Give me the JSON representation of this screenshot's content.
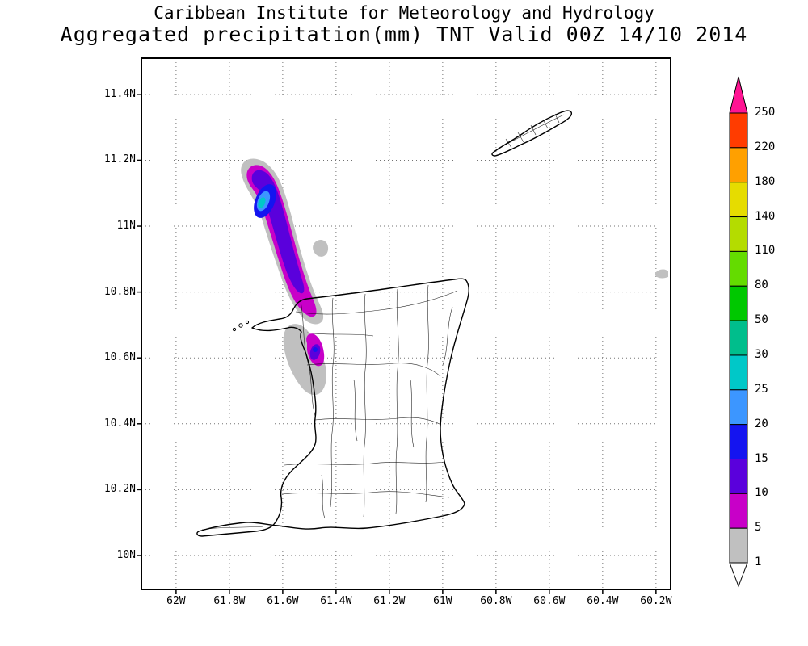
{
  "header": {
    "line1": "Caribbean Institute for Meteorology and Hydrology",
    "line2": "Aggregated precipitation(mm) TNT Valid 00Z 14/10 2014"
  },
  "axes": {
    "lat_ticks": {
      "labels": [
        "11.4N",
        "11.2N",
        "11N",
        "10.8N",
        "10.6N",
        "10.4N",
        "10.2N",
        "10N"
      ],
      "values": [
        11.4,
        11.2,
        11.0,
        10.8,
        10.6,
        10.4,
        10.2,
        10.0
      ]
    },
    "lon_ticks": {
      "labels": [
        "62W",
        "61.8W",
        "61.6W",
        "61.4W",
        "61.2W",
        "61W",
        "60.8W",
        "60.6W",
        "60.4W",
        "60.2W"
      ],
      "values": [
        -62.0,
        -61.8,
        -61.6,
        -61.4,
        -61.2,
        -61.0,
        -60.8,
        -60.6,
        -60.4,
        -60.2
      ]
    }
  },
  "colorbar": {
    "labels_top_to_bottom": [
      "250",
      "220",
      "180",
      "140",
      "110",
      "80",
      "50",
      "30",
      "25",
      "20",
      "15",
      "10",
      "5",
      "1"
    ]
  },
  "chart_data": {
    "type": "heatmap",
    "title": "Aggregated precipitation(mm) TNT Valid 00Z 14/10 2014",
    "subtitle": "Caribbean Institute for Meteorology and Hydrology",
    "region": "Trinidad and Tobago (TNT)",
    "valid_time": "00Z 14/10 2014",
    "units": "mm",
    "lon_range": [
      -62.13,
      -60.145
    ],
    "lat_range": [
      9.897,
      11.51
    ],
    "grid": "dotted",
    "legend_position": "right-vertical-colorbar",
    "levels": [
      1,
      5,
      10,
      15,
      20,
      25,
      30,
      50,
      80,
      110,
      140,
      180,
      220,
      250
    ],
    "level_colors": [
      "#FFFFFF",
      "#C0C0C0",
      "#C800C8",
      "#5A00DC",
      "#1414F0",
      "#3C96FF",
      "#00C8C8",
      "#00BE8C",
      "#00C800",
      "#64DC00",
      "#B4DC00",
      "#E6DC00",
      "#FFA000",
      "#FF3C00",
      "#FF1493"
    ],
    "features": [
      {
        "name": "main-precip-band",
        "description": "Elongated NE-SW precipitation band northwest of Trinidad, extending over the Northern Range / NW peninsula",
        "approx_center_lon": -61.66,
        "approx_center_lat": 11.0,
        "peak_range_mm": "25-30"
      },
      {
        "name": "small-precip-cell",
        "description": "Small precipitation cell on the Gulf of Paria coast near 10.6N",
        "approx_center_lon": -61.49,
        "approx_center_lat": 10.6,
        "peak_range_mm": "15-20"
      }
    ]
  }
}
